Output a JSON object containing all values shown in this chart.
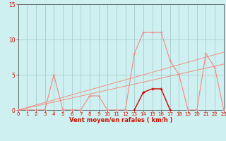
{
  "xlabel": "Vent moyen/en rafales ( km/h )",
  "bg_color": "#cff0f0",
  "grid_color": "#aacccc",
  "axis_color": "#555555",
  "label_color": "#cc1100",
  "tick_color": "#cc1100",
  "x_ticks": [
    0,
    1,
    2,
    3,
    4,
    5,
    6,
    7,
    8,
    9,
    10,
    11,
    12,
    13,
    14,
    15,
    16,
    17,
    18,
    19,
    20,
    21,
    22,
    23
  ],
  "y_ticks": [
    0,
    5,
    10,
    15
  ],
  "xlim": [
    0,
    23
  ],
  "ylim": [
    0,
    15
  ],
  "line1_x": [
    0,
    1,
    2,
    3,
    4,
    5,
    6,
    7,
    8,
    9,
    10,
    11,
    12,
    13,
    14,
    15,
    16,
    17,
    18,
    19,
    20,
    21,
    22,
    23
  ],
  "line1_y": [
    0,
    0,
    0,
    0,
    5,
    0,
    0,
    0,
    2,
    2,
    0,
    0,
    0,
    8,
    11,
    11,
    11,
    7,
    5,
    0,
    0,
    8,
    6,
    0
  ],
  "trend1_x": [
    0,
    23
  ],
  "trend1_y": [
    0,
    6.5
  ],
  "trend2_x": [
    0,
    23
  ],
  "trend2_y": [
    0,
    8.2
  ],
  "dark_line_x": [
    13,
    14,
    15,
    16,
    17
  ],
  "dark_line_y": [
    0,
    2.5,
    3.0,
    3.0,
    0
  ],
  "line1_color": "#f08880",
  "trend_color": "#f09080",
  "dark_line_color": "#cc0000",
  "marker_color": "#f08080"
}
